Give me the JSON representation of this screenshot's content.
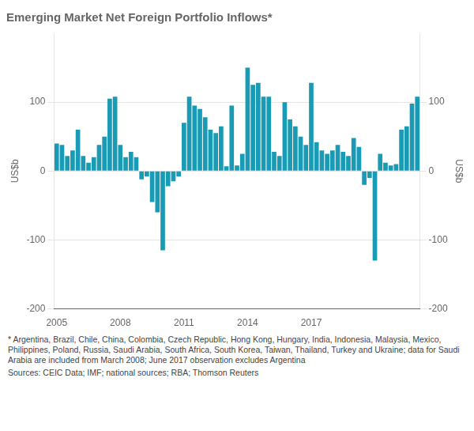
{
  "chart_data": {
    "type": "bar",
    "title": "Emerging Market Net Foreign Portfolio Inflows*",
    "ylabel": "US$b",
    "y2label": "US$b",
    "footnote": "* Argentina, Brazil, Chile, China, Colombia, Czech Republic, Hong Kong, Hungary, India, Indonesia, Malaysia, Mexico, Philippines, Poland, Russia, Saudi Arabia, South Africa, South Korea, Taiwan, Thailand, Turkey and Ukraine; data for Saudi Arabia are included from March 2008; June 2017 observation excludes Argentina",
    "sources": "Sources: CEIC Data; IMF; national sources; RBA; Thomson Reuters",
    "categories": [
      "2005",
      null,
      null,
      null,
      null,
      null,
      null,
      null,
      null,
      null,
      null,
      null,
      "2008",
      null,
      null,
      null,
      null,
      null,
      null,
      null,
      null,
      null,
      null,
      null,
      "2011",
      null,
      null,
      null,
      null,
      null,
      null,
      null,
      null,
      null,
      null,
      null,
      "2014",
      null,
      null,
      null,
      null,
      null,
      null,
      null,
      null,
      null,
      null,
      null,
      "2017",
      null,
      null,
      null,
      null,
      null,
      null,
      null,
      null,
      null,
      null,
      null,
      null,
      null,
      null,
      null,
      null,
      null,
      null,
      null,
      null
    ],
    "values": [
      40,
      38,
      22,
      30,
      60,
      22,
      12,
      20,
      38,
      50,
      105,
      108,
      38,
      20,
      28,
      20,
      -12,
      -8,
      -45,
      -60,
      -115,
      -22,
      -15,
      -8,
      70,
      108,
      95,
      90,
      78,
      60,
      55,
      65,
      7,
      95,
      8,
      25,
      150,
      125,
      128,
      108,
      108,
      28,
      22,
      100,
      75,
      65,
      50,
      38,
      128,
      42,
      30,
      25,
      30,
      38,
      28,
      22,
      48,
      35,
      -20,
      -10,
      -130,
      25,
      12,
      8,
      10,
      60,
      65,
      98,
      108
    ],
    "color": "#1a9bb5",
    "ylim": [
      -200,
      200
    ],
    "yticks": [
      -200,
      -100,
      0,
      100
    ],
    "y2lim": [
      -200,
      200
    ],
    "y2ticks": [
      -200,
      -100,
      0,
      100
    ],
    "grid": true
  }
}
